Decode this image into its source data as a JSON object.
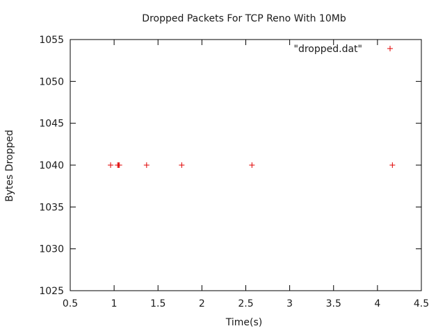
{
  "chart_data": {
    "type": "scatter",
    "title": "Dropped Packets For TCP Reno With 10Mb",
    "xlabel": "Time(s)",
    "ylabel": "Bytes Dropped",
    "xlim": [
      0.5,
      4.5
    ],
    "ylim": [
      1025,
      1055
    ],
    "xticks": [
      0.5,
      1,
      1.5,
      2,
      2.5,
      3,
      3.5,
      4,
      4.5
    ],
    "xtick_labels": [
      "0.5",
      "1",
      "1.5",
      "2",
      "2.5",
      "3",
      "3.5",
      "4",
      "4.5"
    ],
    "yticks": [
      1025,
      1030,
      1035,
      1040,
      1045,
      1050,
      1055
    ],
    "ytick_labels": [
      "1025",
      "1030",
      "1035",
      "1040",
      "1045",
      "1050",
      "1055"
    ],
    "grid": false,
    "legend_position": "top-right",
    "marker": "+",
    "series": [
      {
        "name": "\"dropped.dat\"",
        "color": "#e00000",
        "points": [
          {
            "x": 0.96,
            "y": 1040
          },
          {
            "x": 1.04,
            "y": 1040
          },
          {
            "x": 1.05,
            "y": 1040
          },
          {
            "x": 1.06,
            "y": 1040
          },
          {
            "x": 1.37,
            "y": 1040
          },
          {
            "x": 1.77,
            "y": 1040
          },
          {
            "x": 2.57,
            "y": 1040
          },
          {
            "x": 4.17,
            "y": 1040
          }
        ]
      }
    ]
  }
}
